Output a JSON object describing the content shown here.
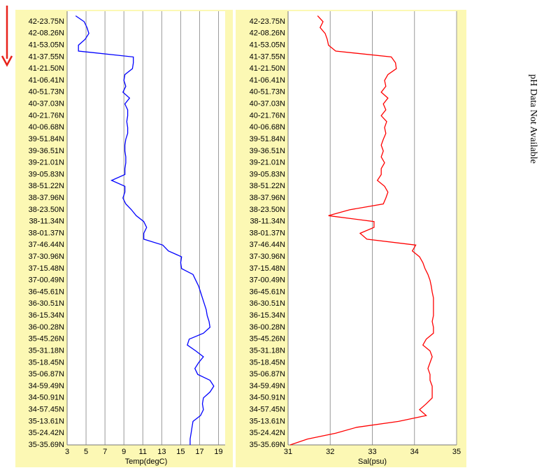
{
  "chart_data": [
    {
      "type": "line",
      "x_label": "Temp(degC)",
      "color": "#0000ff",
      "categories": [
        null,
        "42-23.75N",
        null,
        "42-08.26N",
        null,
        "41-53.05N",
        null,
        "41-37.55N",
        null,
        "41-21.50N",
        null,
        "41-06.41N",
        null,
        "40-51.73N",
        null,
        "40-37.03N",
        null,
        "40-21.76N",
        null,
        "40-06.68N",
        null,
        "39-51.84N",
        null,
        "39-36.51N",
        null,
        "39-21.01N",
        null,
        "39-05.83N",
        null,
        "38-51.22N",
        null,
        "38-37.96N",
        null,
        "38-23.50N",
        null,
        "38-11.34N",
        null,
        "38-01.37N",
        null,
        "37-46.44N",
        null,
        "37-30.96N",
        null,
        "37-15.48N",
        null,
        "37-00.49N",
        null,
        "36-45.61N",
        null,
        "36-30.51N",
        null,
        "36-15.34N",
        null,
        "36-00.28N",
        null,
        "35-45.26N",
        null,
        "35-31.18N",
        null,
        "35-18.45N",
        null,
        "35-06.87N",
        null,
        "34-59.49N",
        null,
        "34-50.91N",
        null,
        "34-57.45N",
        null,
        "35-13.61N",
        null,
        "35-24.42N",
        null,
        "35-35.69N"
      ],
      "values": [
        3.9,
        4.8,
        5.1,
        5.3,
        4.9,
        4.2,
        4.2,
        10.0,
        10.0,
        9.9,
        9.1,
        9.0,
        9.2,
        8.9,
        9.6,
        9.1,
        9.4,
        9.4,
        9.3,
        9.4,
        9.4,
        9.2,
        9.1,
        9.1,
        9.2,
        9.2,
        9.1,
        9.1,
        7.7,
        9.1,
        9.1,
        8.9,
        9.2,
        9.8,
        10.3,
        11.1,
        11.4,
        11.1,
        11.1,
        13.1,
        13.7,
        15.1,
        15.0,
        15.1,
        16.3,
        16.6,
        16.9,
        17.1,
        17.3,
        17.5,
        17.7,
        17.8,
        18.0,
        18.1,
        17.4,
        15.9,
        15.7,
        16.6,
        17.4,
        16.9,
        16.5,
        16.8,
        18.1,
        18.5,
        18.1,
        17.4,
        17.3,
        17.4,
        17.1,
        16.3,
        16.2,
        16.1,
        16.0,
        16.0
      ],
      "xlim": [
        3,
        19.7
      ],
      "xticks": [
        3,
        5,
        7,
        9,
        11,
        13,
        15,
        17,
        19
      ],
      "grid": true
    },
    {
      "type": "line",
      "x_label": "Sal(psu)",
      "color": "#ff0000",
      "categories": [
        null,
        "42-23.75N",
        null,
        "42-08.26N",
        null,
        "41-53.05N",
        null,
        "41-37.55N",
        null,
        "41-21.50N",
        null,
        "41-06.41N",
        null,
        "40-51.73N",
        null,
        "40-37.03N",
        null,
        "40-21.76N",
        null,
        "40-06.68N",
        null,
        "39-51.84N",
        null,
        "39-36.51N",
        null,
        "39-21.01N",
        null,
        "39-05.83N",
        null,
        "38-51.22N",
        null,
        "38-37.96N",
        null,
        "38-23.50N",
        null,
        "38-11.34N",
        null,
        "38-01.37N",
        null,
        "37-46.44N",
        null,
        "37-30.96N",
        null,
        "37-15.48N",
        null,
        "37-00.49N",
        null,
        "36-45.61N",
        null,
        "36-30.51N",
        null,
        "36-15.34N",
        null,
        "36-00.28N",
        null,
        "35-45.26N",
        null,
        "35-31.18N",
        null,
        "35-18.45N",
        null,
        "35-06.87N",
        null,
        "34-59.49N",
        null,
        "34-50.91N",
        null,
        "34-57.45N",
        null,
        "35-13.61N",
        null,
        "35-24.42N",
        null,
        "35-35.69N"
      ],
      "values": [
        31.7,
        31.83,
        31.76,
        31.88,
        31.93,
        31.96,
        32.13,
        33.45,
        33.55,
        33.57,
        33.37,
        33.29,
        33.32,
        33.21,
        33.37,
        33.26,
        33.32,
        33.21,
        33.34,
        33.29,
        33.32,
        33.26,
        33.21,
        33.26,
        33.21,
        33.29,
        33.21,
        33.21,
        33.12,
        33.29,
        33.37,
        33.32,
        33.26,
        32.46,
        31.96,
        33.04,
        33.04,
        32.71,
        32.87,
        34.03,
        33.95,
        34.12,
        34.2,
        34.25,
        34.32,
        34.37,
        34.4,
        34.42,
        34.45,
        34.45,
        34.45,
        34.45,
        34.42,
        34.45,
        34.45,
        34.28,
        34.2,
        34.37,
        34.42,
        34.37,
        34.32,
        34.37,
        34.37,
        34.42,
        34.42,
        34.42,
        34.28,
        34.12,
        34.28,
        33.62,
        32.63,
        32.13,
        31.46,
        31.05
      ],
      "xlim": [
        31,
        35
      ],
      "xticks": [
        31,
        32,
        33,
        34,
        35
      ],
      "grid": true
    }
  ],
  "side_note": "pH Data Not Available"
}
